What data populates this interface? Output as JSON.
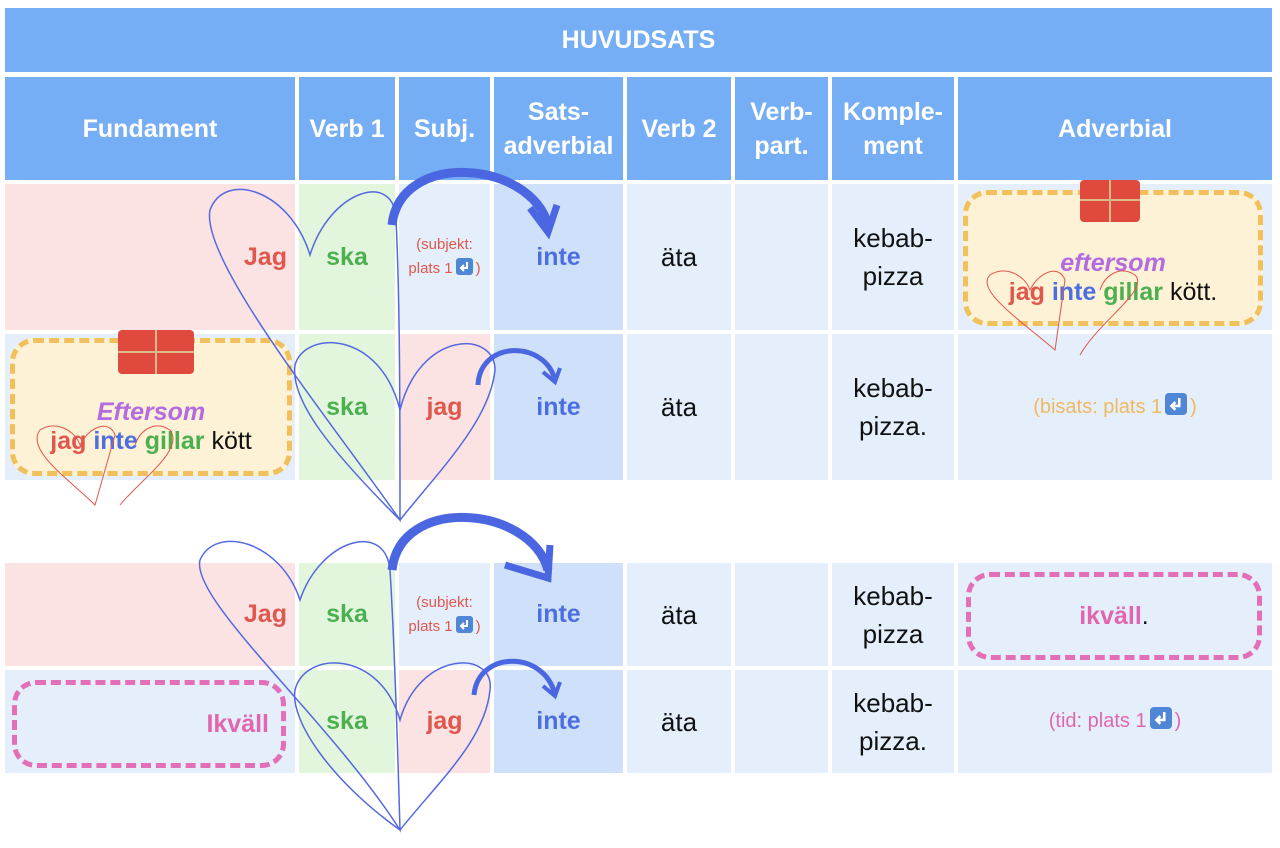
{
  "header": {
    "title": "HUVUDSATS",
    "columns": [
      "Fundament",
      "Verb 1",
      "Subj.",
      [
        "Sats-",
        "adverbial"
      ],
      "Verb 2",
      [
        "Verb-",
        "part."
      ],
      [
        "Komple-",
        "ment"
      ],
      "Adverbial"
    ]
  },
  "rows": [
    {
      "fundament": "Jag",
      "verb1": "ska",
      "subject": [
        "(subjekt:",
        "plats 1",
        ")"
      ],
      "sentence_adverbial": "inte",
      "verb2": "äta",
      "komplement": [
        "kebab-",
        "pizza"
      ],
      "adverbial": {
        "conjunction": "eftersom",
        "words": [
          "jag",
          "inte",
          "gillar",
          "kött."
        ]
      }
    },
    {
      "fundament": {
        "conjunction": "Eftersom",
        "words": [
          "jag",
          "inte",
          "gillar",
          "kött"
        ]
      },
      "verb1": "ska",
      "subject": "jag",
      "sentence_adverbial": "inte",
      "verb2": "äta",
      "komplement": [
        "kebab-",
        "pizza."
      ],
      "adverbial": [
        "(bisats: plats 1",
        ")"
      ]
    },
    {
      "fundament": "Jag",
      "verb1": "ska",
      "subject": [
        "(subjekt:",
        "plats 1",
        ")"
      ],
      "sentence_adverbial": "inte",
      "verb2": "äta",
      "komplement": [
        "kebab-",
        "pizza"
      ],
      "adverbial": [
        "ikväll",
        "."
      ]
    },
    {
      "fundament": "Ikväll",
      "verb1": "ska",
      "subject": "jag",
      "sentence_adverbial": "inte",
      "verb2": "äta",
      "komplement": [
        "kebab-",
        "pizza."
      ],
      "adverbial": [
        "(tid: plats 1",
        ")"
      ]
    }
  ]
}
